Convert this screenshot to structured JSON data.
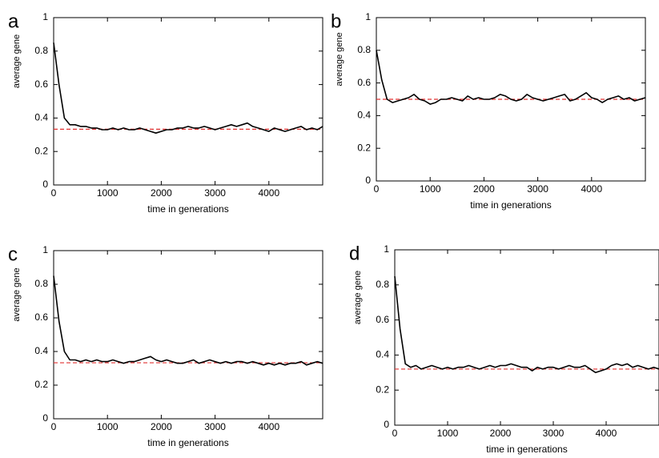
{
  "chart_data": [
    {
      "type": "line",
      "panel_label": "a",
      "xlabel": "time in generations",
      "ylabel": "average gene",
      "x": [
        0,
        100,
        200,
        300,
        400,
        500,
        600,
        700,
        800,
        900,
        1000,
        1100,
        1200,
        1300,
        1400,
        1500,
        1600,
        1700,
        1800,
        1900,
        2000,
        2100,
        2200,
        2300,
        2400,
        2500,
        2600,
        2700,
        2800,
        2900,
        3000,
        3100,
        3200,
        3300,
        3400,
        3500,
        3600,
        3700,
        3800,
        3900,
        4000,
        4100,
        4200,
        4300,
        4400,
        4500,
        4600,
        4700,
        4800,
        4900,
        5000
      ],
      "series": [
        {
          "color": "#000000",
          "values": [
            0.85,
            0.6,
            0.4,
            0.36,
            0.36,
            0.35,
            0.35,
            0.34,
            0.34,
            0.33,
            0.33,
            0.34,
            0.33,
            0.34,
            0.33,
            0.33,
            0.34,
            0.33,
            0.32,
            0.31,
            0.32,
            0.33,
            0.33,
            0.34,
            0.34,
            0.35,
            0.34,
            0.34,
            0.35,
            0.34,
            0.33,
            0.34,
            0.35,
            0.36,
            0.35,
            0.36,
            0.37,
            0.35,
            0.34,
            0.33,
            0.32,
            0.34,
            0.33,
            0.32,
            0.33,
            0.34,
            0.35,
            0.33,
            0.34,
            0.33,
            0.35
          ]
        }
      ],
      "reference_line": {
        "value": 0.333,
        "color": "#e03030"
      },
      "xlim": [
        0,
        5000
      ],
      "xticks": [
        0,
        1000,
        2000,
        3000,
        4000
      ],
      "ylim": [
        0,
        1
      ],
      "yticks": [
        0,
        0.2,
        0.4,
        0.6,
        0.8,
        1
      ]
    },
    {
      "type": "line",
      "panel_label": "b",
      "xlabel": "time in generations",
      "ylabel": "average gene",
      "x": [
        0,
        100,
        200,
        300,
        400,
        500,
        600,
        700,
        800,
        900,
        1000,
        1100,
        1200,
        1300,
        1400,
        1500,
        1600,
        1700,
        1800,
        1900,
        2000,
        2100,
        2200,
        2300,
        2400,
        2500,
        2600,
        2700,
        2800,
        2900,
        3000,
        3100,
        3200,
        3300,
        3400,
        3500,
        3600,
        3700,
        3800,
        3900,
        4000,
        4100,
        4200,
        4300,
        4400,
        4500,
        4600,
        4700,
        4800,
        4900,
        5000
      ],
      "series": [
        {
          "color": "#000000",
          "values": [
            0.8,
            0.62,
            0.5,
            0.48,
            0.49,
            0.5,
            0.51,
            0.53,
            0.5,
            0.49,
            0.47,
            0.48,
            0.5,
            0.5,
            0.51,
            0.5,
            0.49,
            0.52,
            0.5,
            0.51,
            0.5,
            0.5,
            0.51,
            0.53,
            0.52,
            0.5,
            0.49,
            0.5,
            0.53,
            0.51,
            0.5,
            0.49,
            0.5,
            0.51,
            0.52,
            0.53,
            0.49,
            0.5,
            0.52,
            0.54,
            0.51,
            0.5,
            0.48,
            0.5,
            0.51,
            0.52,
            0.5,
            0.51,
            0.49,
            0.5,
            0.51
          ]
        }
      ],
      "reference_line": {
        "value": 0.5,
        "color": "#e03030"
      },
      "xlim": [
        0,
        5000
      ],
      "xticks": [
        0,
        1000,
        2000,
        3000,
        4000
      ],
      "ylim": [
        0,
        1
      ],
      "yticks": [
        0,
        0.2,
        0.4,
        0.6,
        0.8,
        1
      ]
    },
    {
      "type": "line",
      "panel_label": "c",
      "xlabel": "time in generations",
      "ylabel": "average gene",
      "x": [
        0,
        100,
        200,
        300,
        400,
        500,
        600,
        700,
        800,
        900,
        1000,
        1100,
        1200,
        1300,
        1400,
        1500,
        1600,
        1700,
        1800,
        1900,
        2000,
        2100,
        2200,
        2300,
        2400,
        2500,
        2600,
        2700,
        2800,
        2900,
        3000,
        3100,
        3200,
        3300,
        3400,
        3500,
        3600,
        3700,
        3800,
        3900,
        4000,
        4100,
        4200,
        4300,
        4400,
        4500,
        4600,
        4700,
        4800,
        4900,
        5000
      ],
      "series": [
        {
          "color": "#000000",
          "values": [
            0.85,
            0.58,
            0.4,
            0.35,
            0.35,
            0.34,
            0.35,
            0.34,
            0.35,
            0.34,
            0.34,
            0.35,
            0.34,
            0.33,
            0.34,
            0.34,
            0.35,
            0.36,
            0.37,
            0.35,
            0.34,
            0.35,
            0.34,
            0.33,
            0.33,
            0.34,
            0.35,
            0.33,
            0.34,
            0.35,
            0.34,
            0.33,
            0.34,
            0.33,
            0.34,
            0.34,
            0.33,
            0.34,
            0.33,
            0.32,
            0.33,
            0.32,
            0.33,
            0.32,
            0.33,
            0.33,
            0.34,
            0.32,
            0.33,
            0.34,
            0.33
          ]
        }
      ],
      "reference_line": {
        "value": 0.333,
        "color": "#e03030"
      },
      "xlim": [
        0,
        5000
      ],
      "xticks": [
        0,
        1000,
        2000,
        3000,
        4000
      ],
      "ylim": [
        0,
        1
      ],
      "yticks": [
        0,
        0.2,
        0.4,
        0.6,
        0.8,
        1
      ]
    },
    {
      "type": "line",
      "panel_label": "d",
      "xlabel": "time in generations",
      "ylabel": "average gene",
      "x": [
        0,
        100,
        200,
        300,
        400,
        500,
        600,
        700,
        800,
        900,
        1000,
        1100,
        1200,
        1300,
        1400,
        1500,
        1600,
        1700,
        1800,
        1900,
        2000,
        2100,
        2200,
        2300,
        2400,
        2500,
        2600,
        2700,
        2800,
        2900,
        3000,
        3100,
        3200,
        3300,
        3400,
        3500,
        3600,
        3700,
        3800,
        3900,
        4000,
        4100,
        4200,
        4300,
        4400,
        4500,
        4600,
        4700,
        4800,
        4900,
        5000
      ],
      "series": [
        {
          "color": "#000000",
          "values": [
            0.85,
            0.55,
            0.35,
            0.33,
            0.34,
            0.32,
            0.33,
            0.34,
            0.33,
            0.32,
            0.33,
            0.32,
            0.33,
            0.33,
            0.34,
            0.33,
            0.32,
            0.33,
            0.34,
            0.33,
            0.34,
            0.34,
            0.35,
            0.34,
            0.33,
            0.33,
            0.31,
            0.33,
            0.32,
            0.33,
            0.33,
            0.32,
            0.33,
            0.34,
            0.33,
            0.33,
            0.34,
            0.32,
            0.3,
            0.31,
            0.32,
            0.34,
            0.35,
            0.34,
            0.35,
            0.33,
            0.34,
            0.33,
            0.32,
            0.33,
            0.32
          ]
        }
      ],
      "reference_line": {
        "value": 0.32,
        "color": "#e03030"
      },
      "xlim": [
        0,
        5000
      ],
      "xticks": [
        0,
        1000,
        2000,
        3000,
        4000
      ],
      "ylim": [
        0,
        1
      ],
      "yticks": [
        0,
        0.2,
        0.4,
        0.6,
        0.8,
        1
      ]
    }
  ]
}
